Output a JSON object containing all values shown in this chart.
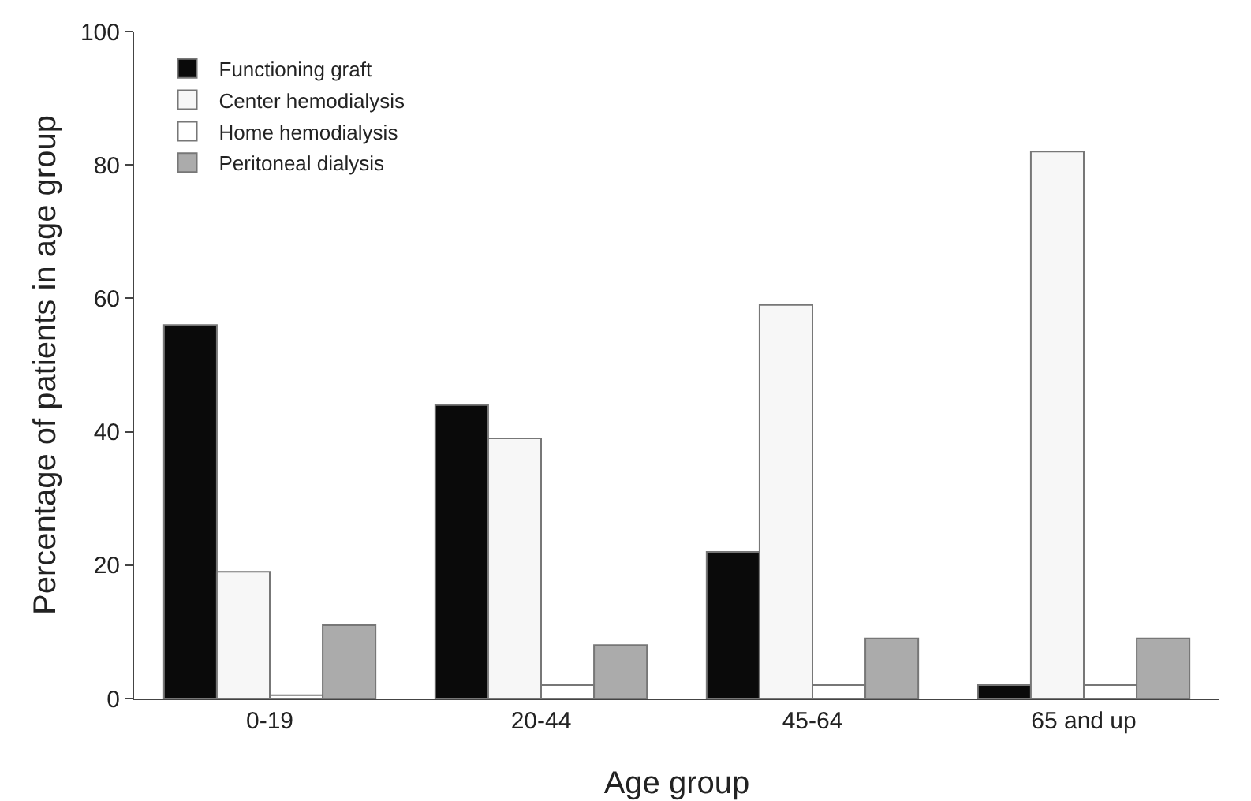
{
  "chart_data": {
    "type": "bar",
    "xlabel": "Age group",
    "ylabel": "Percentage of patients in age group",
    "categories": [
      "0-19",
      "20-44",
      "45-64",
      "65 and up"
    ],
    "series": [
      {
        "name": "Functioning graft",
        "color": "#0a0a0a",
        "values": [
          56,
          44,
          22,
          2
        ]
      },
      {
        "name": "Center hemodialysis",
        "color": "#f7f7f7",
        "values": [
          19,
          39,
          59,
          82
        ]
      },
      {
        "name": "Home hemodialysis",
        "color": "#ffffff",
        "values": [
          0.5,
          2,
          2,
          2
        ]
      },
      {
        "name": "Peritoneal dialysis",
        "color": "#ababab",
        "values": [
          11,
          8,
          9,
          9
        ]
      }
    ],
    "ylim": [
      0,
      100
    ],
    "yticks": [
      0,
      20,
      40,
      60,
      80,
      100
    ],
    "grid": false,
    "legend": "top left"
  }
}
